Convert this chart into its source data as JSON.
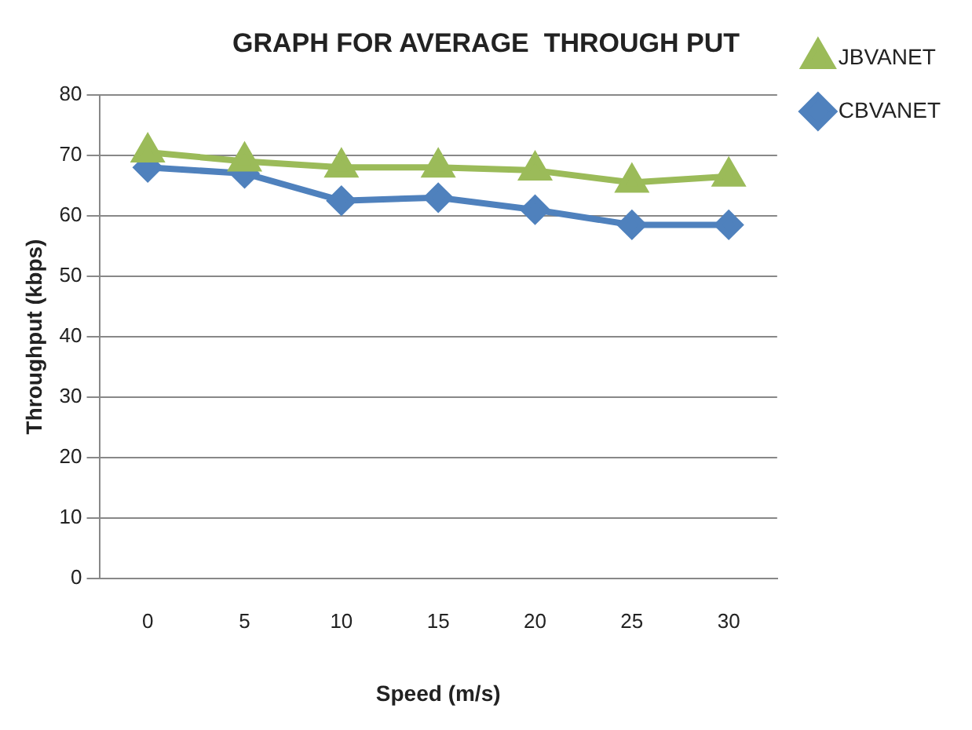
{
  "chart_data": {
    "type": "line",
    "title": "GRAPH FOR AVERAGE  THROUGH PUT",
    "xlabel": "Speed (m/s)",
    "ylabel": "Throughput (kbps)",
    "categories": [
      "0",
      "5",
      "10",
      "15",
      "20",
      "25",
      "30"
    ],
    "series": [
      {
        "name": "JBVANET",
        "color": "#9bbb59",
        "marker": "triangle",
        "values": [
          70.5,
          69,
          68,
          68,
          67.5,
          65.5,
          66.5
        ]
      },
      {
        "name": "CBVANET",
        "color": "#4f81bd",
        "marker": "diamond",
        "values": [
          68,
          67,
          62.5,
          63,
          61,
          58.5,
          58.5
        ]
      }
    ],
    "ylim": [
      0,
      80
    ],
    "yticks": [
      0,
      10,
      20,
      30,
      40,
      50,
      60,
      70,
      80
    ],
    "grid": "y",
    "legend": "top right"
  }
}
